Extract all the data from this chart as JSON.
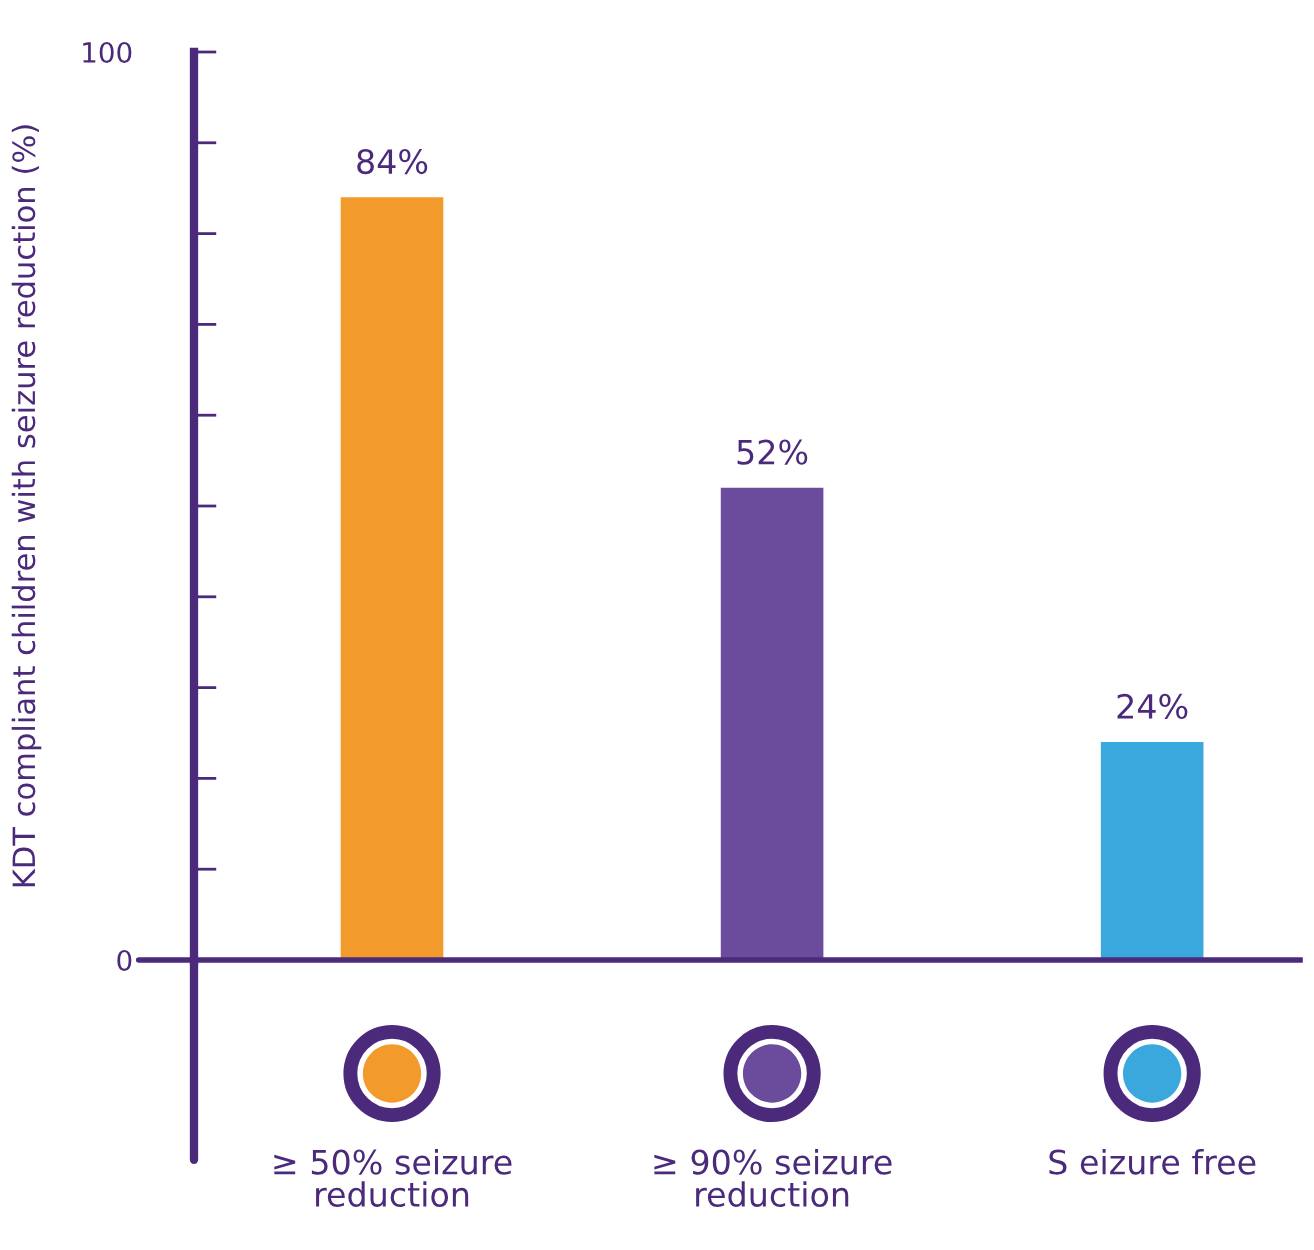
{
  "chart_data": {
    "type": "bar",
    "ylabel": "KDT compliant children with seizure reduction (%)",
    "categories": [
      "≥ 50% seizure\nreduction",
      "≥ 90% seizure\nreduction",
      "S eizure free"
    ],
    "values": [
      84,
      52,
      24
    ],
    "value_labels": [
      "84%",
      "52%",
      "24%"
    ],
    "colors": [
      "#f39a2c",
      "#6b4c9c",
      "#3aa8dc"
    ],
    "ylim": [
      0,
      100
    ],
    "yticks": [
      0,
      {
        "value": 10,
        "label": null
      },
      {
        "value": 20,
        "label": null
      },
      {
        "value": 30,
        "label": null
      },
      {
        "value": 40,
        "label": null
      },
      {
        "value": 50,
        "label": null
      },
      {
        "value": 60,
        "label": null
      },
      {
        "value": 70,
        "label": null
      },
      {
        "value": 80,
        "label": null
      },
      {
        "value": 90,
        "label": null
      },
      100
    ],
    "grid": false,
    "legend": false
  }
}
